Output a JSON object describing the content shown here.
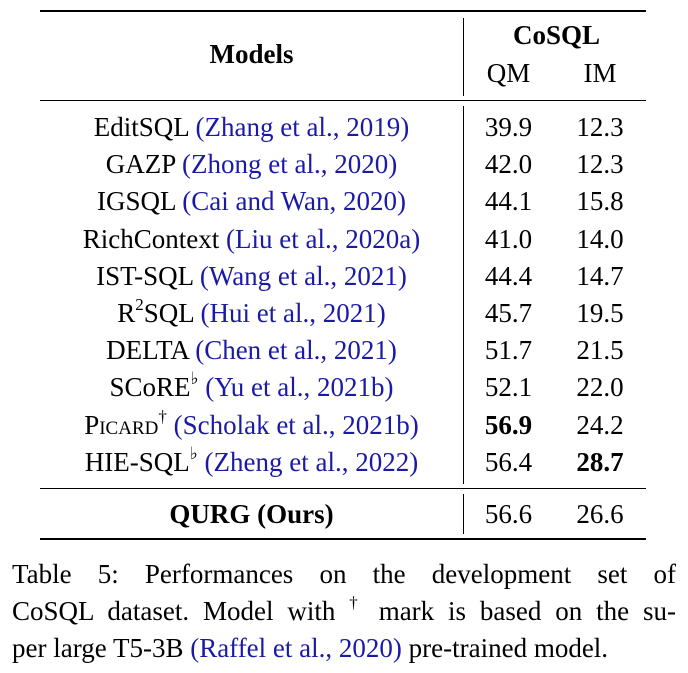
{
  "table": {
    "header": {
      "models": "Models",
      "group": "CoSQL",
      "qm": "QM",
      "im": "IM"
    },
    "rows": [
      {
        "name": "EditSQL",
        "sup": "",
        "smallcaps": false,
        "cite": "(Zhang et al., 2019)",
        "qm": "39.9",
        "im": "12.3",
        "qm_bold": false,
        "im_bold": false
      },
      {
        "name": "GAZP",
        "sup": "",
        "smallcaps": false,
        "cite": "(Zhong et al., 2020)",
        "qm": "42.0",
        "im": "12.3",
        "qm_bold": false,
        "im_bold": false
      },
      {
        "name": "IGSQL",
        "sup": "",
        "smallcaps": false,
        "cite": "(Cai and Wan, 2020)",
        "qm": "44.1",
        "im": "15.8",
        "qm_bold": false,
        "im_bold": false
      },
      {
        "name": "RichContext",
        "sup": "",
        "smallcaps": false,
        "cite": "(Liu et al., 2020a)",
        "qm": "41.0",
        "im": "14.0",
        "qm_bold": false,
        "im_bold": false
      },
      {
        "name": "IST-SQL",
        "sup": "",
        "smallcaps": false,
        "cite": "(Wang et al., 2021)",
        "qm": "44.4",
        "im": "14.7",
        "qm_bold": false,
        "im_bold": false
      },
      {
        "name": "R",
        "sup": "2",
        "name_suffix": "SQL",
        "smallcaps": false,
        "cite": "(Hui et al., 2021)",
        "qm": "45.7",
        "im": "19.5",
        "qm_bold": false,
        "im_bold": false
      },
      {
        "name": "DELTA",
        "sup": "",
        "smallcaps": false,
        "cite": "(Chen et al., 2021)",
        "qm": "51.7",
        "im": "21.5",
        "qm_bold": false,
        "im_bold": false
      },
      {
        "name": "SCoRE",
        "sup": "♭",
        "smallcaps": false,
        "cite": "(Yu et al., 2021b)",
        "qm": "52.1",
        "im": "22.0",
        "qm_bold": false,
        "im_bold": false
      },
      {
        "name": "Picard",
        "sup": "†",
        "smallcaps": true,
        "cite": "(Scholak et al., 2021b)",
        "qm": "56.9",
        "im": "24.2",
        "qm_bold": true,
        "im_bold": false
      },
      {
        "name": "HIE-SQL",
        "sup": "♭",
        "smallcaps": false,
        "cite": "(Zheng et al., 2022)",
        "qm": "56.4",
        "im": "28.7",
        "qm_bold": false,
        "im_bold": true
      }
    ],
    "ours": {
      "name": "QURG (Ours)",
      "qm": "56.6",
      "im": "26.6"
    }
  },
  "caption": {
    "line1": "Table 5:  Performances on the development set of",
    "line2_pre": "CoSQL dataset. Model with ",
    "line2_sup": "†",
    "line2_post": " mark is based on the su-",
    "line3_pre": "per large T5-3B ",
    "line3_cite": "(Raffel et al., 2020)",
    "line3_post": " pre-trained model."
  }
}
